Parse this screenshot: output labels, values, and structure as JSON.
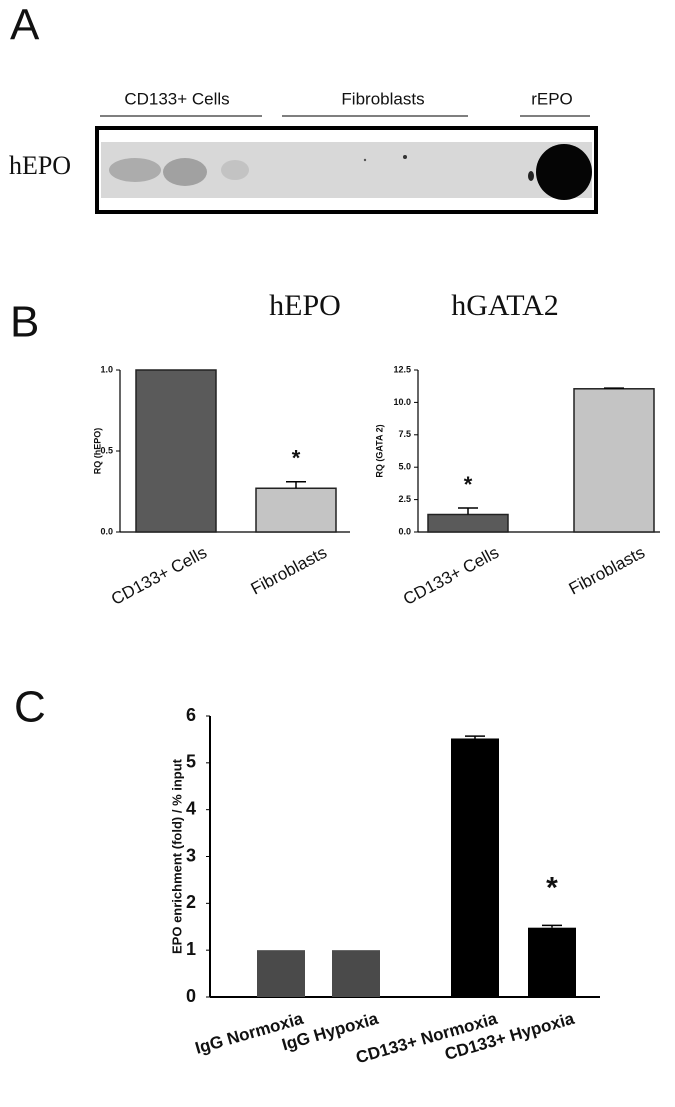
{
  "panel_labels": [
    "A",
    "B",
    "C"
  ],
  "blot": {
    "row_label": "hEPO",
    "groups": [
      "CD133+ Cells",
      "Fibroblasts",
      "rEPO"
    ]
  },
  "chart_data": [
    {
      "type": "bar",
      "title": "hEPO",
      "y_label": "RQ (hEPO)",
      "categories": [
        "CD133+ Cells",
        "Fibroblasts"
      ],
      "values": [
        1.0,
        0.27
      ],
      "errors": [
        0,
        0.04
      ],
      "colors": [
        "#5a5a5a",
        "#c4c4c4"
      ],
      "annotations": [
        null,
        "*"
      ],
      "ylim": [
        0,
        1.0
      ],
      "yticks": [
        {
          "value": 0,
          "label": "0.0"
        },
        {
          "value": 0.5,
          "label": "0.5"
        },
        {
          "value": 1.0,
          "label": "1.0"
        }
      ]
    },
    {
      "type": "bar",
      "title": "hGATA2",
      "y_label": "RQ (GATA 2)",
      "categories": [
        "CD133+ Cells",
        "Fibroblasts"
      ],
      "values": [
        1.35,
        11.05
      ],
      "errors": [
        0.5,
        0.05
      ],
      "colors": [
        "#5a5a5a",
        "#c4c4c4"
      ],
      "annotations": [
        "*",
        null
      ],
      "ylim": [
        0,
        12.5
      ],
      "yticks": [
        {
          "value": 0,
          "label": "0.0"
        },
        {
          "value": 2.5,
          "label": "2.5"
        },
        {
          "value": 5,
          "label": "5.0"
        },
        {
          "value": 7.5,
          "label": "7.5"
        },
        {
          "value": 10,
          "label": "10.0"
        },
        {
          "value": 12.5,
          "label": "12.5"
        }
      ]
    },
    {
      "type": "bar",
      "y_label": "EPO enrichment (fold) / % input",
      "categories": [
        "IgG Normoxia",
        "IgG Hypoxia",
        "CD133+ Normoxia",
        "CD133+ Hypoxia"
      ],
      "values": [
        1,
        1,
        5.52,
        1.48
      ],
      "errors": [
        0,
        0,
        0.05,
        0.05
      ],
      "colors": [
        "#4a4a4a",
        "#4a4a4a",
        "#000000",
        "#000000"
      ],
      "annotations": [
        null,
        null,
        null,
        "*"
      ],
      "ylim": [
        0,
        6
      ],
      "yticks": [
        0,
        1,
        2,
        3,
        4,
        5,
        6
      ]
    }
  ]
}
